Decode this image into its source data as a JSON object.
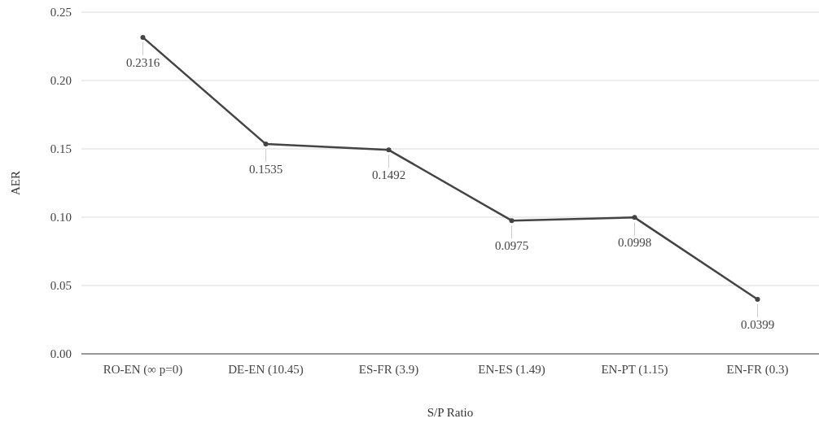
{
  "chart_data": {
    "type": "line",
    "xlabel": "S/P Ratio",
    "ylabel": "AER",
    "categories": [
      "RO-EN (∞ p=0)",
      "DE-EN (10.45)",
      "ES-FR (3.9)",
      "EN-ES (1.49)",
      "EN-PT (1.15)",
      "EN-FR (0.3)"
    ],
    "series": [
      {
        "color": "#444444",
        "values": [
          0.2316,
          0.1535,
          0.1492,
          0.0975,
          0.0998,
          0.0399
        ]
      }
    ],
    "ylim": [
      0,
      0.25
    ],
    "yticks": [
      {
        "value": 0,
        "label": "0.00"
      },
      {
        "value": 0.05,
        "label": "0.05"
      },
      {
        "value": 0.1,
        "label": "0.10"
      },
      {
        "value": 0.15,
        "label": "0.15"
      },
      {
        "value": 0.2,
        "label": "0.20"
      },
      {
        "value": 0.25,
        "label": "0.25"
      }
    ],
    "grid": "y",
    "marker": "circle",
    "line_style": "solid",
    "data_labels": true
  }
}
